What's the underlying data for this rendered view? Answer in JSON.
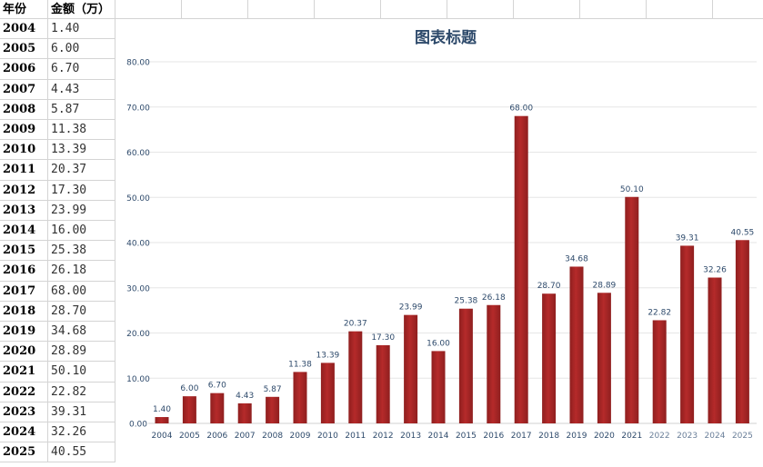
{
  "sheet": {
    "headers": [
      "年份",
      "金额（万）"
    ],
    "rows": [
      [
        "2004",
        "1.40"
      ],
      [
        "2005",
        "6.00"
      ],
      [
        "2006",
        "6.70"
      ],
      [
        "2007",
        "4.43"
      ],
      [
        "2008",
        "5.87"
      ],
      [
        "2009",
        "11.38"
      ],
      [
        "2010",
        "13.39"
      ],
      [
        "2011",
        "20.37"
      ],
      [
        "2012",
        "17.30"
      ],
      [
        "2013",
        "23.99"
      ],
      [
        "2014",
        "16.00"
      ],
      [
        "2015",
        "25.38"
      ],
      [
        "2016",
        "26.18"
      ],
      [
        "2017",
        "68.00"
      ],
      [
        "2018",
        "28.70"
      ],
      [
        "2019",
        "34.68"
      ],
      [
        "2020",
        "28.89"
      ],
      [
        "2021",
        "50.10"
      ],
      [
        "2022",
        "22.82"
      ],
      [
        "2023",
        "39.31"
      ],
      [
        "2024",
        "32.26"
      ],
      [
        "2025",
        "40.55"
      ]
    ]
  },
  "chart_data": {
    "type": "bar",
    "title": "图表标题",
    "categories": [
      "2004",
      "2005",
      "2006",
      "2007",
      "2008",
      "2009",
      "2010",
      "2011",
      "2012",
      "2013",
      "2014",
      "2015",
      "2016",
      "2017",
      "2018",
      "2019",
      "2020",
      "2021",
      "2022",
      "2023",
      "2024",
      "2025"
    ],
    "values": [
      1.4,
      6.0,
      6.7,
      4.43,
      5.87,
      11.38,
      13.39,
      20.37,
      17.3,
      23.99,
      16.0,
      25.38,
      26.18,
      68.0,
      28.7,
      34.68,
      28.89,
      50.1,
      22.82,
      39.31,
      32.26,
      40.55
    ],
    "data_labels": [
      "1.40",
      "6.00",
      "6.70",
      "4.43",
      "5.87",
      "11.38",
      "13.39",
      "20.37",
      "17.30",
      "23.99",
      "16.00",
      "25.38",
      "26.18",
      "68.00",
      "28.70",
      "34.68",
      "28.89",
      "50.10",
      "22.82",
      "39.31",
      "32.26",
      "40.55"
    ],
    "yticks": [
      "0.00",
      "10.00",
      "20.00",
      "30.00",
      "40.00",
      "50.00",
      "60.00",
      "70.00",
      "80.00"
    ],
    "ylim": [
      0,
      80
    ],
    "grid": true,
    "xlabel": "",
    "ylabel": "",
    "bar_color": "#b52a2a",
    "text_color": "#2e4a6b"
  }
}
